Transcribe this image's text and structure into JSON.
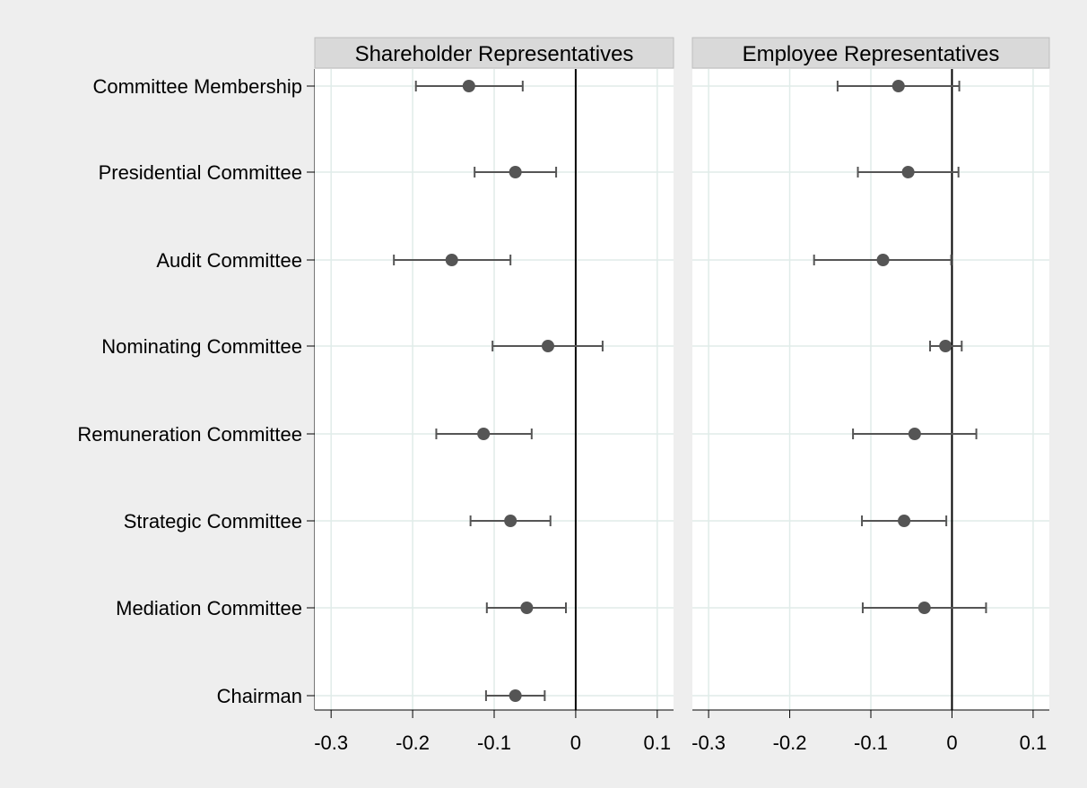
{
  "chart_data": {
    "type": "scatter",
    "style": "coefficient plot with confidence intervals",
    "categories": [
      "Committee Membership",
      "Presidential Committee",
      "Audit Committee",
      "Nominating Committee",
      "Remuneration Committee",
      "Strategic Committee",
      "Mediation Committee",
      "Chairman"
    ],
    "xlim": [
      -0.32,
      0.12
    ],
    "xticks": [
      -0.3,
      -0.2,
      -0.1,
      0,
      0.1
    ],
    "xtick_labels": [
      "-0.3",
      "-0.2",
      "-0.1",
      "0",
      "0.1"
    ],
    "reference_line": 0,
    "grid": true,
    "colors": {
      "background": "#eeeeee",
      "plot_area": "#ffffff",
      "panel_header": "#d9d9d9",
      "grid": "#e0ece9",
      "marker": "#555555",
      "reference_line": "#000000",
      "text": "#000000"
    },
    "panels": [
      {
        "title": "Shareholder Representatives",
        "points": [
          {
            "label": "Committee Membership",
            "estimate": -0.131,
            "lower": -0.196,
            "upper": -0.065
          },
          {
            "label": "Presidential Committee",
            "estimate": -0.074,
            "lower": -0.124,
            "upper": -0.024
          },
          {
            "label": "Audit Committee",
            "estimate": -0.152,
            "lower": -0.223,
            "upper": -0.08
          },
          {
            "label": "Nominating Committee",
            "estimate": -0.034,
            "lower": -0.102,
            "upper": 0.033
          },
          {
            "label": "Remuneration Committee",
            "estimate": -0.113,
            "lower": -0.171,
            "upper": -0.054
          },
          {
            "label": "Strategic Committee",
            "estimate": -0.08,
            "lower": -0.129,
            "upper": -0.031
          },
          {
            "label": "Mediation Committee",
            "estimate": -0.06,
            "lower": -0.109,
            "upper": -0.012
          },
          {
            "label": "Chairman",
            "estimate": -0.074,
            "lower": -0.11,
            "upper": -0.038
          }
        ]
      },
      {
        "title": "Employee Representatives",
        "points": [
          {
            "label": "Committee Membership",
            "estimate": -0.066,
            "lower": -0.141,
            "upper": 0.009
          },
          {
            "label": "Presidential Committee",
            "estimate": -0.054,
            "lower": -0.116,
            "upper": 0.008
          },
          {
            "label": "Audit Committee",
            "estimate": -0.085,
            "lower": -0.17,
            "upper": -0.001
          },
          {
            "label": "Nominating Committee",
            "estimate": -0.008,
            "lower": -0.027,
            "upper": 0.012
          },
          {
            "label": "Remuneration Committee",
            "estimate": -0.046,
            "lower": -0.122,
            "upper": 0.03
          },
          {
            "label": "Strategic Committee",
            "estimate": -0.059,
            "lower": -0.111,
            "upper": -0.007
          },
          {
            "label": "Mediation Committee",
            "estimate": -0.034,
            "lower": -0.11,
            "upper": 0.042
          },
          {
            "label": "Chairman",
            "estimate": null,
            "lower": null,
            "upper": null
          }
        ]
      }
    ]
  }
}
